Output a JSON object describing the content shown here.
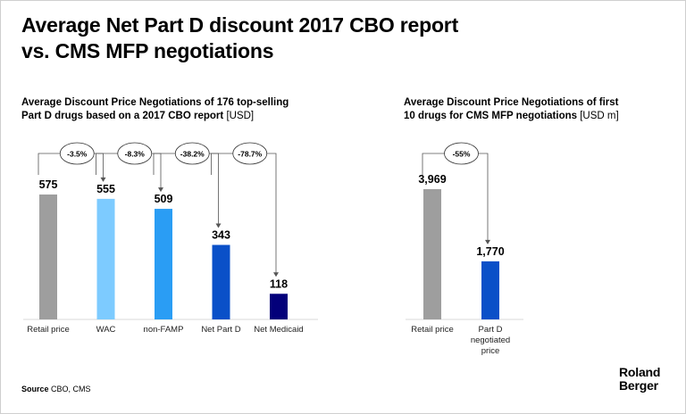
{
  "title_lines": [
    "Average Net Part D discount 2017 CBO report",
    "vs. CMS MFP negotiations"
  ],
  "source": {
    "label": "Source",
    "text": "CBO, CMS"
  },
  "brand": {
    "line1": "Roland",
    "line2": "Berger"
  },
  "colors": {
    "retail": "#9e9e9e",
    "wac": "#7dcbff",
    "nonfamp": "#2a9df4",
    "netpartd": "#0a50c8",
    "netmedicaid": "#03007a",
    "connector": "#555555"
  },
  "chart_data": [
    {
      "type": "bar",
      "title": "Average Discount Price Negotiations of 176 top-selling Part D drugs based on a 2017 CBO report",
      "title_lines": [
        "Average Discount Price Negotiations of 176 top-selling",
        "Part D drugs based on a 2017 CBO report"
      ],
      "unit": "[USD]",
      "categories": [
        "Retail price",
        "WAC",
        "non-FAMP",
        "Net Part D",
        "Net Medicaid"
      ],
      "values": [
        575,
        555,
        509,
        343,
        118
      ],
      "value_labels": [
        "575",
        "555",
        "509",
        "343",
        "118"
      ],
      "bar_colors": [
        "#9e9e9e",
        "#7dcbff",
        "#2a9df4",
        "#0a50c8",
        "#03007a"
      ],
      "ylim": [
        0,
        575
      ],
      "grid": false,
      "annotations": [
        {
          "label": "-3.5%",
          "to": 1
        },
        {
          "label": "-8.3%",
          "to": 2
        },
        {
          "label": "-38.2%",
          "to": 3
        },
        {
          "label": "-78.7%",
          "to": 4
        }
      ]
    },
    {
      "type": "bar",
      "title": "Average Discount Price Negotiations of first 10 drugs for CMS MFP negotiations",
      "title_lines": [
        "Average Discount Price Negotiations of first",
        "10 drugs for CMS MFP negotiations"
      ],
      "unit": "[USD m]",
      "categories": [
        "Retail price",
        "Part D negotiated price"
      ],
      "category_lines": [
        [
          "Retail price"
        ],
        [
          "Part D",
          "negotiated",
          "price"
        ]
      ],
      "values": [
        3969,
        1770
      ],
      "value_labels": [
        "3,969",
        "1,770"
      ],
      "bar_colors": [
        "#9e9e9e",
        "#0a50c8"
      ],
      "ylim": [
        0,
        3969
      ],
      "grid": false,
      "annotations": [
        {
          "label": "-55%",
          "to": 1
        }
      ]
    }
  ]
}
